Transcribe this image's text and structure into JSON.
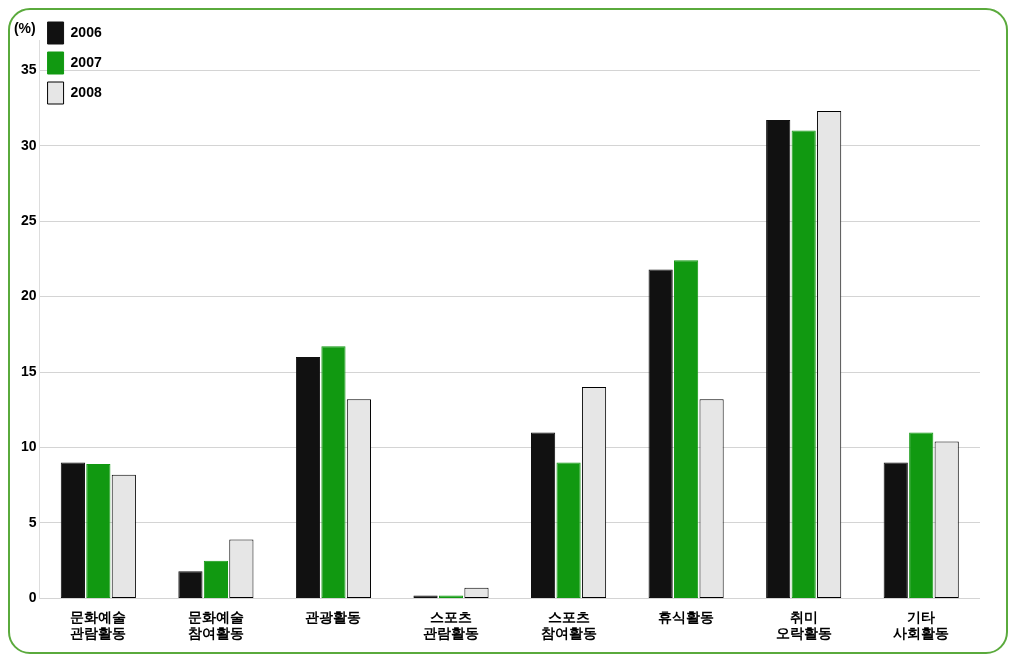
{
  "chart_data": {
    "type": "bar",
    "ylabel": "(%)",
    "categories": [
      "문화예술 관람활동",
      "문화예술 참여활동",
      "관광활동",
      "스포츠 관람활동",
      "스포츠 참여활동",
      "휴식활동",
      "취미 오락활동",
      "기타 사회활동"
    ],
    "series": [
      {
        "name": "2006",
        "color": "#111111",
        "values": [
          9.0,
          1.8,
          16.0,
          0.2,
          11.0,
          21.8,
          31.7,
          9.0
        ]
      },
      {
        "name": "2007",
        "color": "#119911",
        "values": [
          8.9,
          2.5,
          16.7,
          0.2,
          9.0,
          22.4,
          31.0,
          11.0
        ]
      },
      {
        "name": "2008",
        "color": "#e6e6e6",
        "values": [
          8.2,
          3.9,
          13.2,
          0.7,
          14.0,
          13.2,
          32.3,
          10.4
        ]
      }
    ],
    "ylim": [
      0,
      37
    ],
    "yticks": [
      0,
      5,
      10,
      15,
      20,
      25,
      30,
      35
    ],
    "grid": "y",
    "legend": "top left"
  }
}
